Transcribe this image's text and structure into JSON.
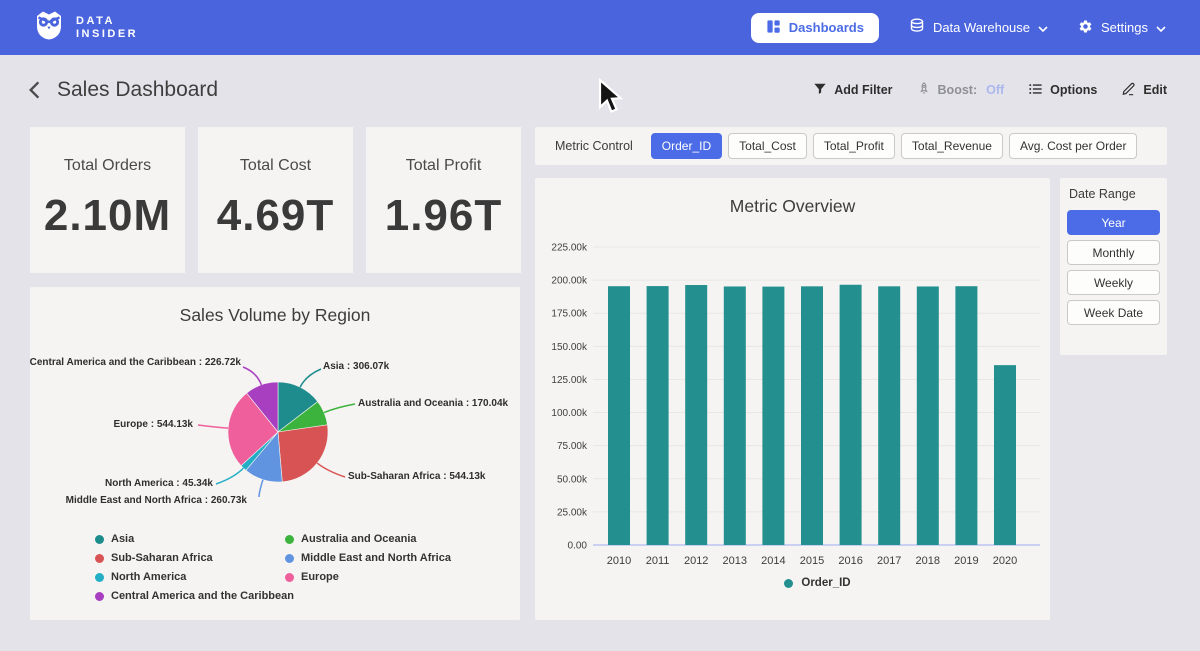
{
  "brand": {
    "line1": "DATA",
    "line2": "INSIDER"
  },
  "navbar": {
    "dashboards": "Dashboards",
    "data_warehouse": "Data Warehouse",
    "settings": "Settings"
  },
  "header": {
    "title": "Sales Dashboard",
    "add_filter": "Add Filter",
    "boost_label": "Boost:",
    "boost_value": "Off",
    "options": "Options",
    "edit": "Edit"
  },
  "kpis": [
    {
      "label": "Total Orders",
      "value": "2.10M"
    },
    {
      "label": "Total Cost",
      "value": "4.69T"
    },
    {
      "label": "Total Profit",
      "value": "1.96T"
    }
  ],
  "metric_control": {
    "label": "Metric Control",
    "options": [
      {
        "label": "Order_ID",
        "selected": true
      },
      {
        "label": "Total_Cost",
        "selected": false
      },
      {
        "label": "Total_Profit",
        "selected": false
      },
      {
        "label": "Total_Revenue",
        "selected": false
      },
      {
        "label": "Avg. Cost per Order",
        "selected": false
      }
    ]
  },
  "date_range": {
    "label": "Date Range",
    "options": [
      {
        "label": "Year",
        "selected": true
      },
      {
        "label": "Monthly",
        "selected": false
      },
      {
        "label": "Weekly",
        "selected": false
      },
      {
        "label": "Week Date",
        "selected": false
      }
    ]
  },
  "colors": {
    "navbar_blue": "#4a64dd",
    "accent_blue": "#4b6ce6",
    "bar_teal": "#23908f",
    "boost_off": "#aab8ee",
    "card_bg": "#f5f4f2",
    "page_bg": "#e4e3ea"
  },
  "chart_data": [
    {
      "type": "pie",
      "title": "Sales Volume by Region",
      "unit": "k",
      "slices": [
        {
          "label": "Asia",
          "value": 306.07,
          "display": "306.07k",
          "color": "#1e8c8c"
        },
        {
          "label": "Australia and Oceania",
          "value": 170.04,
          "display": "170.04k",
          "color": "#3cb33c"
        },
        {
          "label": "Sub-Saharan Africa",
          "value": 544.13,
          "display": "544.13k",
          "color": "#d85454"
        },
        {
          "label": "Middle East and North Africa",
          "value": 260.73,
          "display": "260.73k",
          "color": "#6094e0"
        },
        {
          "label": "North America",
          "value": 45.34,
          "display": "45.34k",
          "color": "#23aec6"
        },
        {
          "label": "Europe",
          "value": 544.13,
          "display": "544.13k",
          "color": "#ef5f9b"
        },
        {
          "label": "Central America and the Caribbean",
          "value": 226.72,
          "display": "226.72k",
          "color": "#a83ec0"
        }
      ],
      "legend_columns": [
        [
          "Asia",
          "Sub-Saharan Africa",
          "North America",
          "Central America and the Caribbean"
        ],
        [
          "Australia and Oceania",
          "Middle East and North Africa",
          "Europe"
        ]
      ]
    },
    {
      "type": "bar",
      "title": "Metric Overview",
      "categories": [
        "2010",
        "2011",
        "2012",
        "2013",
        "2014",
        "2015",
        "2016",
        "2017",
        "2018",
        "2019",
        "2020"
      ],
      "series": [
        {
          "name": "Order_ID",
          "color": "#23908f",
          "values": [
            195.4,
            195.5,
            196.3,
            195.2,
            195.1,
            195.3,
            196.5,
            195.3,
            195.2,
            195.4,
            135.8
          ]
        }
      ],
      "value_unit": "k",
      "ylabel": "",
      "xlabel": "",
      "ylim": [
        0,
        225
      ],
      "ytick_step": 25,
      "ytick_labels": [
        "0.00",
        "25.00k",
        "50.00k",
        "75.00k",
        "100.00k",
        "125.00k",
        "150.00k",
        "175.00k",
        "200.00k",
        "225.00k"
      ],
      "grid": true,
      "legend_position": "bottom"
    }
  ]
}
